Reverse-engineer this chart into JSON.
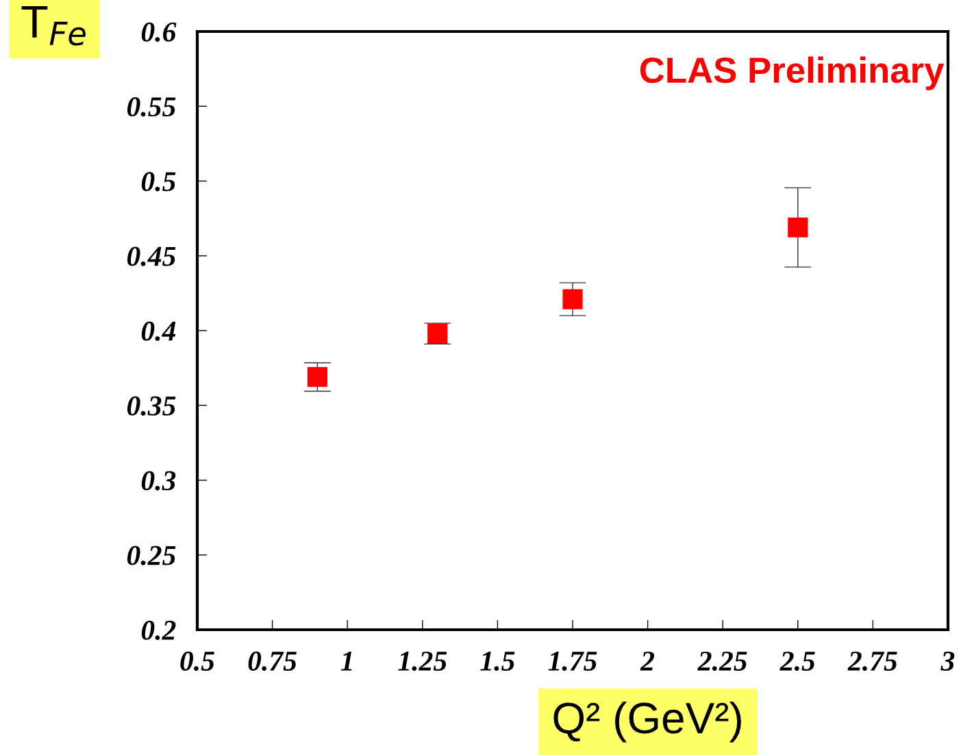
{
  "chart_data": {
    "type": "scatter",
    "xlabel": "Q² (GeV²)",
    "ylabel": "T$_{Fe}$",
    "x": [
      0.9,
      1.3,
      1.75,
      2.5
    ],
    "series": [
      {
        "color": "#ff0000",
        "values": [
          0.369,
          0.398,
          0.421,
          0.469
        ],
        "errors": [
          0.0095,
          0.007,
          0.011,
          0.0265
        ]
      }
    ],
    "xlim": [
      0.5,
      3
    ],
    "xticks": [
      0.5,
      0.75,
      1,
      1.25,
      1.5,
      1.75,
      2,
      2.25,
      2.5,
      2.75,
      3
    ],
    "ylim": [
      0.2,
      0.6
    ],
    "yticks": [
      0.2,
      0.25,
      0.3,
      0.35,
      0.4,
      0.45,
      0.5,
      0.55,
      0.6
    ],
    "marker": "square",
    "grid": false,
    "legend": false,
    "annotations": [
      "CLAS Preliminary"
    ]
  }
}
